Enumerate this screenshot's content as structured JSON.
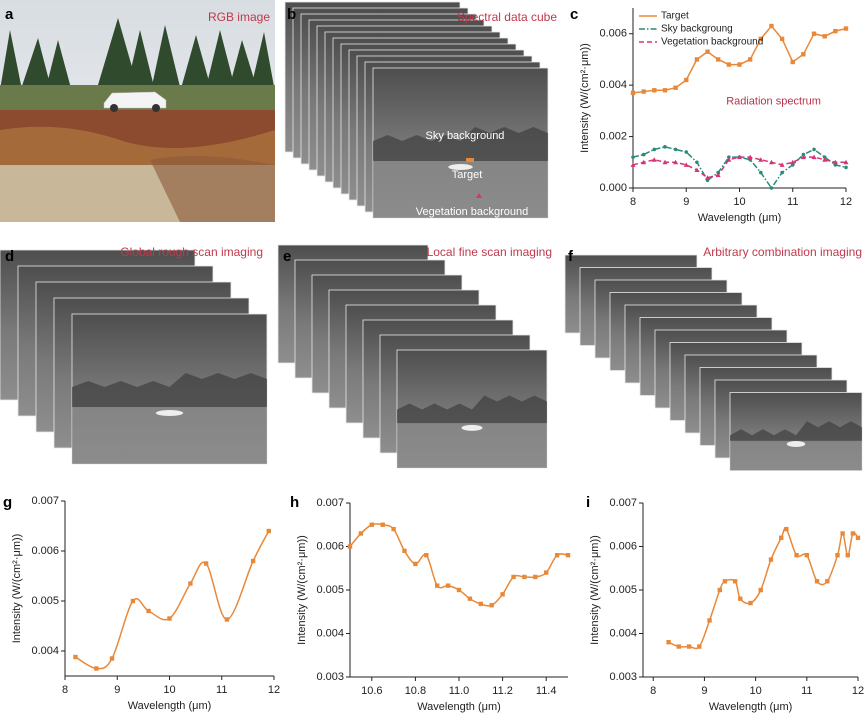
{
  "images": [
    {
      "label": "a",
      "caption": "RGB image"
    },
    {
      "label": "b",
      "caption": "Spectral data cube",
      "annotations": [
        "Sky background",
        "Target",
        "Vegetation background"
      ]
    },
    {
      "label": "d",
      "caption": "Global rough scan imaging"
    },
    {
      "label": "e",
      "caption": "Local fine scan imaging"
    },
    {
      "label": "f",
      "caption": "Arbitrary combination imaging"
    }
  ],
  "chart_data": [
    {
      "type": "line",
      "label": "c",
      "annotation": "Radiation spectrum",
      "xlabel": "Wavelength (μm)",
      "ylabel": "Intensity (W/(cm²·μm))",
      "legend": "upper left",
      "x": [
        8.0,
        8.2,
        8.4,
        8.6,
        8.8,
        9.0,
        9.2,
        9.4,
        9.6,
        9.8,
        10.0,
        10.2,
        10.4,
        10.6,
        10.8,
        11.0,
        11.2,
        11.4,
        11.6,
        11.8,
        12.0
      ],
      "series": [
        {
          "name": "Target",
          "color": "#e8893a",
          "marker": "square",
          "line_style": "solid",
          "values": [
            0.0037,
            0.00375,
            0.0038,
            0.0038,
            0.0039,
            0.0042,
            0.005,
            0.0053,
            0.005,
            0.0048,
            0.0048,
            0.005,
            0.0058,
            0.0063,
            0.0058,
            0.0049,
            0.0052,
            0.006,
            0.0059,
            0.0061,
            0.0062
          ]
        },
        {
          "name": "Sky backgroung",
          "color": "#2a8a7a",
          "marker": "circle",
          "line_style": "dashdot",
          "values": [
            0.0012,
            0.0013,
            0.0015,
            0.0016,
            0.0015,
            0.0014,
            0.001,
            0.0003,
            0.0006,
            0.0012,
            0.0012,
            0.0011,
            0.0006,
            0.0,
            0.0006,
            0.0009,
            0.0013,
            0.0015,
            0.0012,
            0.0009,
            0.0008
          ]
        },
        {
          "name": "Vegetation background",
          "color": "#d6337a",
          "marker": "triangle",
          "line_style": "dashed",
          "values": [
            0.0009,
            0.001,
            0.0011,
            0.001,
            0.001,
            0.0009,
            0.0007,
            0.0004,
            0.0005,
            0.0011,
            0.0012,
            0.0012,
            0.0011,
            0.001,
            0.0009,
            0.001,
            0.0012,
            0.0012,
            0.0011,
            0.001,
            0.001
          ]
        }
      ],
      "xlim": [
        8,
        12
      ],
      "ylim": [
        0,
        0.007
      ],
      "xticks": [
        8,
        9,
        10,
        11,
        12
      ],
      "yticks": [
        {
          "value": 0,
          "label": "0.000"
        },
        0.002,
        0.004,
        0.006
      ]
    },
    {
      "type": "line",
      "label": "g",
      "xlabel": "Wavelength (μm)",
      "ylabel": "Intensity (W/(cm²·μm))",
      "color": "#e8893a",
      "marker": "square",
      "smooth": true,
      "x": [
        8.2,
        8.6,
        8.9,
        9.3,
        9.6,
        10.0,
        10.4,
        10.7,
        11.1,
        11.6,
        11.9
      ],
      "values": [
        0.00388,
        0.00365,
        0.00385,
        0.005,
        0.0048,
        0.00465,
        0.00535,
        0.00575,
        0.00463,
        0.0058,
        0.0064
      ],
      "xlim": [
        8,
        12
      ],
      "ylim": [
        0.0035,
        0.007
      ],
      "xticks": [
        8,
        9,
        10,
        11,
        12
      ],
      "yticks": [
        0.004,
        0.005,
        0.006,
        0.007
      ]
    },
    {
      "type": "line",
      "label": "h",
      "xlabel": "Wavelength (μm)",
      "ylabel": "Intensity (W/(cm²·μm))",
      "color": "#e8893a",
      "marker": "square",
      "smooth": true,
      "x": [
        10.5,
        10.55,
        10.6,
        10.65,
        10.7,
        10.75,
        10.8,
        10.85,
        10.9,
        10.95,
        11.0,
        11.05,
        11.1,
        11.15,
        11.2,
        11.25,
        11.3,
        11.35,
        11.4,
        11.45,
        11.5
      ],
      "values": [
        0.006,
        0.0063,
        0.0065,
        0.0065,
        0.0064,
        0.0059,
        0.0056,
        0.0058,
        0.0051,
        0.0051,
        0.005,
        0.0048,
        0.00468,
        0.00465,
        0.0049,
        0.0053,
        0.0053,
        0.0053,
        0.0054,
        0.0058,
        0.0058
      ],
      "xlim": [
        10.5,
        11.5
      ],
      "ylim": [
        0.003,
        0.007
      ],
      "xticks": [
        10.6,
        10.8,
        11.0,
        11.2,
        11.4
      ],
      "yticks": [
        0.003,
        0.004,
        0.005,
        0.006,
        0.007
      ]
    },
    {
      "type": "line",
      "label": "i",
      "xlabel": "Wavelength (μm)",
      "ylabel": "Intensity (W/(cm²·μm))",
      "color": "#e8893a",
      "marker": "square",
      "smooth": true,
      "x": [
        8.3,
        8.5,
        8.7,
        8.9,
        9.1,
        9.3,
        9.4,
        9.6,
        9.7,
        9.9,
        10.1,
        10.3,
        10.5,
        10.6,
        10.8,
        11.0,
        11.2,
        11.4,
        11.6,
        11.7,
        11.8,
        11.9,
        12.0
      ],
      "values": [
        0.0038,
        0.0037,
        0.0037,
        0.0037,
        0.0043,
        0.005,
        0.0052,
        0.0052,
        0.0048,
        0.0047,
        0.005,
        0.0057,
        0.0062,
        0.0064,
        0.0058,
        0.0058,
        0.0052,
        0.0052,
        0.0058,
        0.0063,
        0.0058,
        0.0063,
        0.0062
      ],
      "xlim": [
        7.8,
        12
      ],
      "ylim": [
        0.003,
        0.007
      ],
      "xticks": [
        8,
        9,
        10,
        11,
        12
      ],
      "yticks": [
        0.003,
        0.004,
        0.005,
        0.006,
        0.007
      ]
    }
  ]
}
